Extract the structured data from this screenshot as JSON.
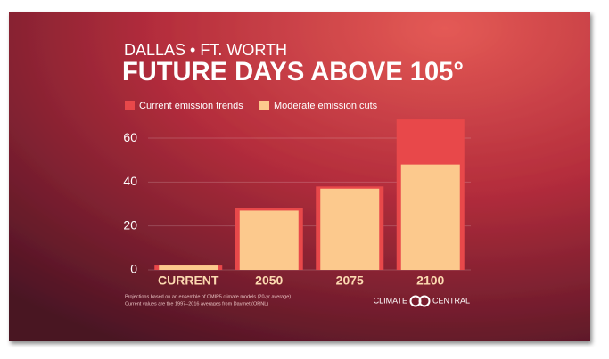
{
  "chart_data": {
    "type": "bar",
    "subtitle": "DALLAS • FT. WORTH",
    "title": "FUTURE DAYS ABOVE 105°",
    "categories": [
      "CURRENT",
      "2050",
      "2075",
      "2100"
    ],
    "series": [
      {
        "name": "Current emission trends",
        "color": "#e8484a",
        "values": [
          2,
          28,
          38,
          68.5
        ]
      },
      {
        "name": "Moderate emission cuts",
        "color": "#fcc98d",
        "values": [
          2,
          27,
          37,
          48
        ]
      }
    ],
    "ylim": [
      0,
      70
    ],
    "yticks": [
      0,
      20,
      40,
      60
    ],
    "grid": true,
    "footnotes": [
      "Projections based on an ensemble of CMIP5 climate models (20-yr average)",
      "Current values are the 1997–2016 averages from Daymet (ORNL)"
    ],
    "logo": [
      "CLIMATE",
      "CENTRAL"
    ]
  }
}
